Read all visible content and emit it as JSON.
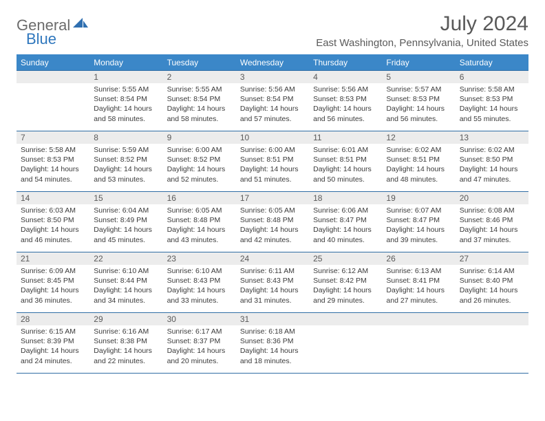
{
  "brand": {
    "general": "General",
    "blue": "Blue"
  },
  "title": "July 2024",
  "subtitle": "East Washington, Pennsylvania, United States",
  "colors": {
    "header_bg": "#3b87c8",
    "header_text": "#ffffff",
    "row_border": "#2e6ca4",
    "daynum_bg": "#ececec",
    "text_muted": "#595959",
    "body_text": "#3a3a3a",
    "page_bg": "#ffffff",
    "logo_gray": "#6b6b6b",
    "logo_blue": "#2f77bd"
  },
  "fonts": {
    "title_size_pt": 22,
    "subtitle_size_pt": 11,
    "header_size_pt": 9,
    "daynum_size_pt": 9,
    "body_size_pt": 8
  },
  "weekdays": [
    "Sunday",
    "Monday",
    "Tuesday",
    "Wednesday",
    "Thursday",
    "Friday",
    "Saturday"
  ],
  "weeks": [
    [
      null,
      {
        "n": "1",
        "sr": "5:55 AM",
        "ss": "8:54 PM",
        "dl": "14 hours and 58 minutes."
      },
      {
        "n": "2",
        "sr": "5:55 AM",
        "ss": "8:54 PM",
        "dl": "14 hours and 58 minutes."
      },
      {
        "n": "3",
        "sr": "5:56 AM",
        "ss": "8:54 PM",
        "dl": "14 hours and 57 minutes."
      },
      {
        "n": "4",
        "sr": "5:56 AM",
        "ss": "8:53 PM",
        "dl": "14 hours and 56 minutes."
      },
      {
        "n": "5",
        "sr": "5:57 AM",
        "ss": "8:53 PM",
        "dl": "14 hours and 56 minutes."
      },
      {
        "n": "6",
        "sr": "5:58 AM",
        "ss": "8:53 PM",
        "dl": "14 hours and 55 minutes."
      }
    ],
    [
      {
        "n": "7",
        "sr": "5:58 AM",
        "ss": "8:53 PM",
        "dl": "14 hours and 54 minutes."
      },
      {
        "n": "8",
        "sr": "5:59 AM",
        "ss": "8:52 PM",
        "dl": "14 hours and 53 minutes."
      },
      {
        "n": "9",
        "sr": "6:00 AM",
        "ss": "8:52 PM",
        "dl": "14 hours and 52 minutes."
      },
      {
        "n": "10",
        "sr": "6:00 AM",
        "ss": "8:51 PM",
        "dl": "14 hours and 51 minutes."
      },
      {
        "n": "11",
        "sr": "6:01 AM",
        "ss": "8:51 PM",
        "dl": "14 hours and 50 minutes."
      },
      {
        "n": "12",
        "sr": "6:02 AM",
        "ss": "8:51 PM",
        "dl": "14 hours and 48 minutes."
      },
      {
        "n": "13",
        "sr": "6:02 AM",
        "ss": "8:50 PM",
        "dl": "14 hours and 47 minutes."
      }
    ],
    [
      {
        "n": "14",
        "sr": "6:03 AM",
        "ss": "8:50 PM",
        "dl": "14 hours and 46 minutes."
      },
      {
        "n": "15",
        "sr": "6:04 AM",
        "ss": "8:49 PM",
        "dl": "14 hours and 45 minutes."
      },
      {
        "n": "16",
        "sr": "6:05 AM",
        "ss": "8:48 PM",
        "dl": "14 hours and 43 minutes."
      },
      {
        "n": "17",
        "sr": "6:05 AM",
        "ss": "8:48 PM",
        "dl": "14 hours and 42 minutes."
      },
      {
        "n": "18",
        "sr": "6:06 AM",
        "ss": "8:47 PM",
        "dl": "14 hours and 40 minutes."
      },
      {
        "n": "19",
        "sr": "6:07 AM",
        "ss": "8:47 PM",
        "dl": "14 hours and 39 minutes."
      },
      {
        "n": "20",
        "sr": "6:08 AM",
        "ss": "8:46 PM",
        "dl": "14 hours and 37 minutes."
      }
    ],
    [
      {
        "n": "21",
        "sr": "6:09 AM",
        "ss": "8:45 PM",
        "dl": "14 hours and 36 minutes."
      },
      {
        "n": "22",
        "sr": "6:10 AM",
        "ss": "8:44 PM",
        "dl": "14 hours and 34 minutes."
      },
      {
        "n": "23",
        "sr": "6:10 AM",
        "ss": "8:43 PM",
        "dl": "14 hours and 33 minutes."
      },
      {
        "n": "24",
        "sr": "6:11 AM",
        "ss": "8:43 PM",
        "dl": "14 hours and 31 minutes."
      },
      {
        "n": "25",
        "sr": "6:12 AM",
        "ss": "8:42 PM",
        "dl": "14 hours and 29 minutes."
      },
      {
        "n": "26",
        "sr": "6:13 AM",
        "ss": "8:41 PM",
        "dl": "14 hours and 27 minutes."
      },
      {
        "n": "27",
        "sr": "6:14 AM",
        "ss": "8:40 PM",
        "dl": "14 hours and 26 minutes."
      }
    ],
    [
      {
        "n": "28",
        "sr": "6:15 AM",
        "ss": "8:39 PM",
        "dl": "14 hours and 24 minutes."
      },
      {
        "n": "29",
        "sr": "6:16 AM",
        "ss": "8:38 PM",
        "dl": "14 hours and 22 minutes."
      },
      {
        "n": "30",
        "sr": "6:17 AM",
        "ss": "8:37 PM",
        "dl": "14 hours and 20 minutes."
      },
      {
        "n": "31",
        "sr": "6:18 AM",
        "ss": "8:36 PM",
        "dl": "14 hours and 18 minutes."
      },
      null,
      null,
      null
    ]
  ],
  "labels": {
    "sunrise": "Sunrise:",
    "sunset": "Sunset:",
    "daylight": "Daylight:"
  }
}
